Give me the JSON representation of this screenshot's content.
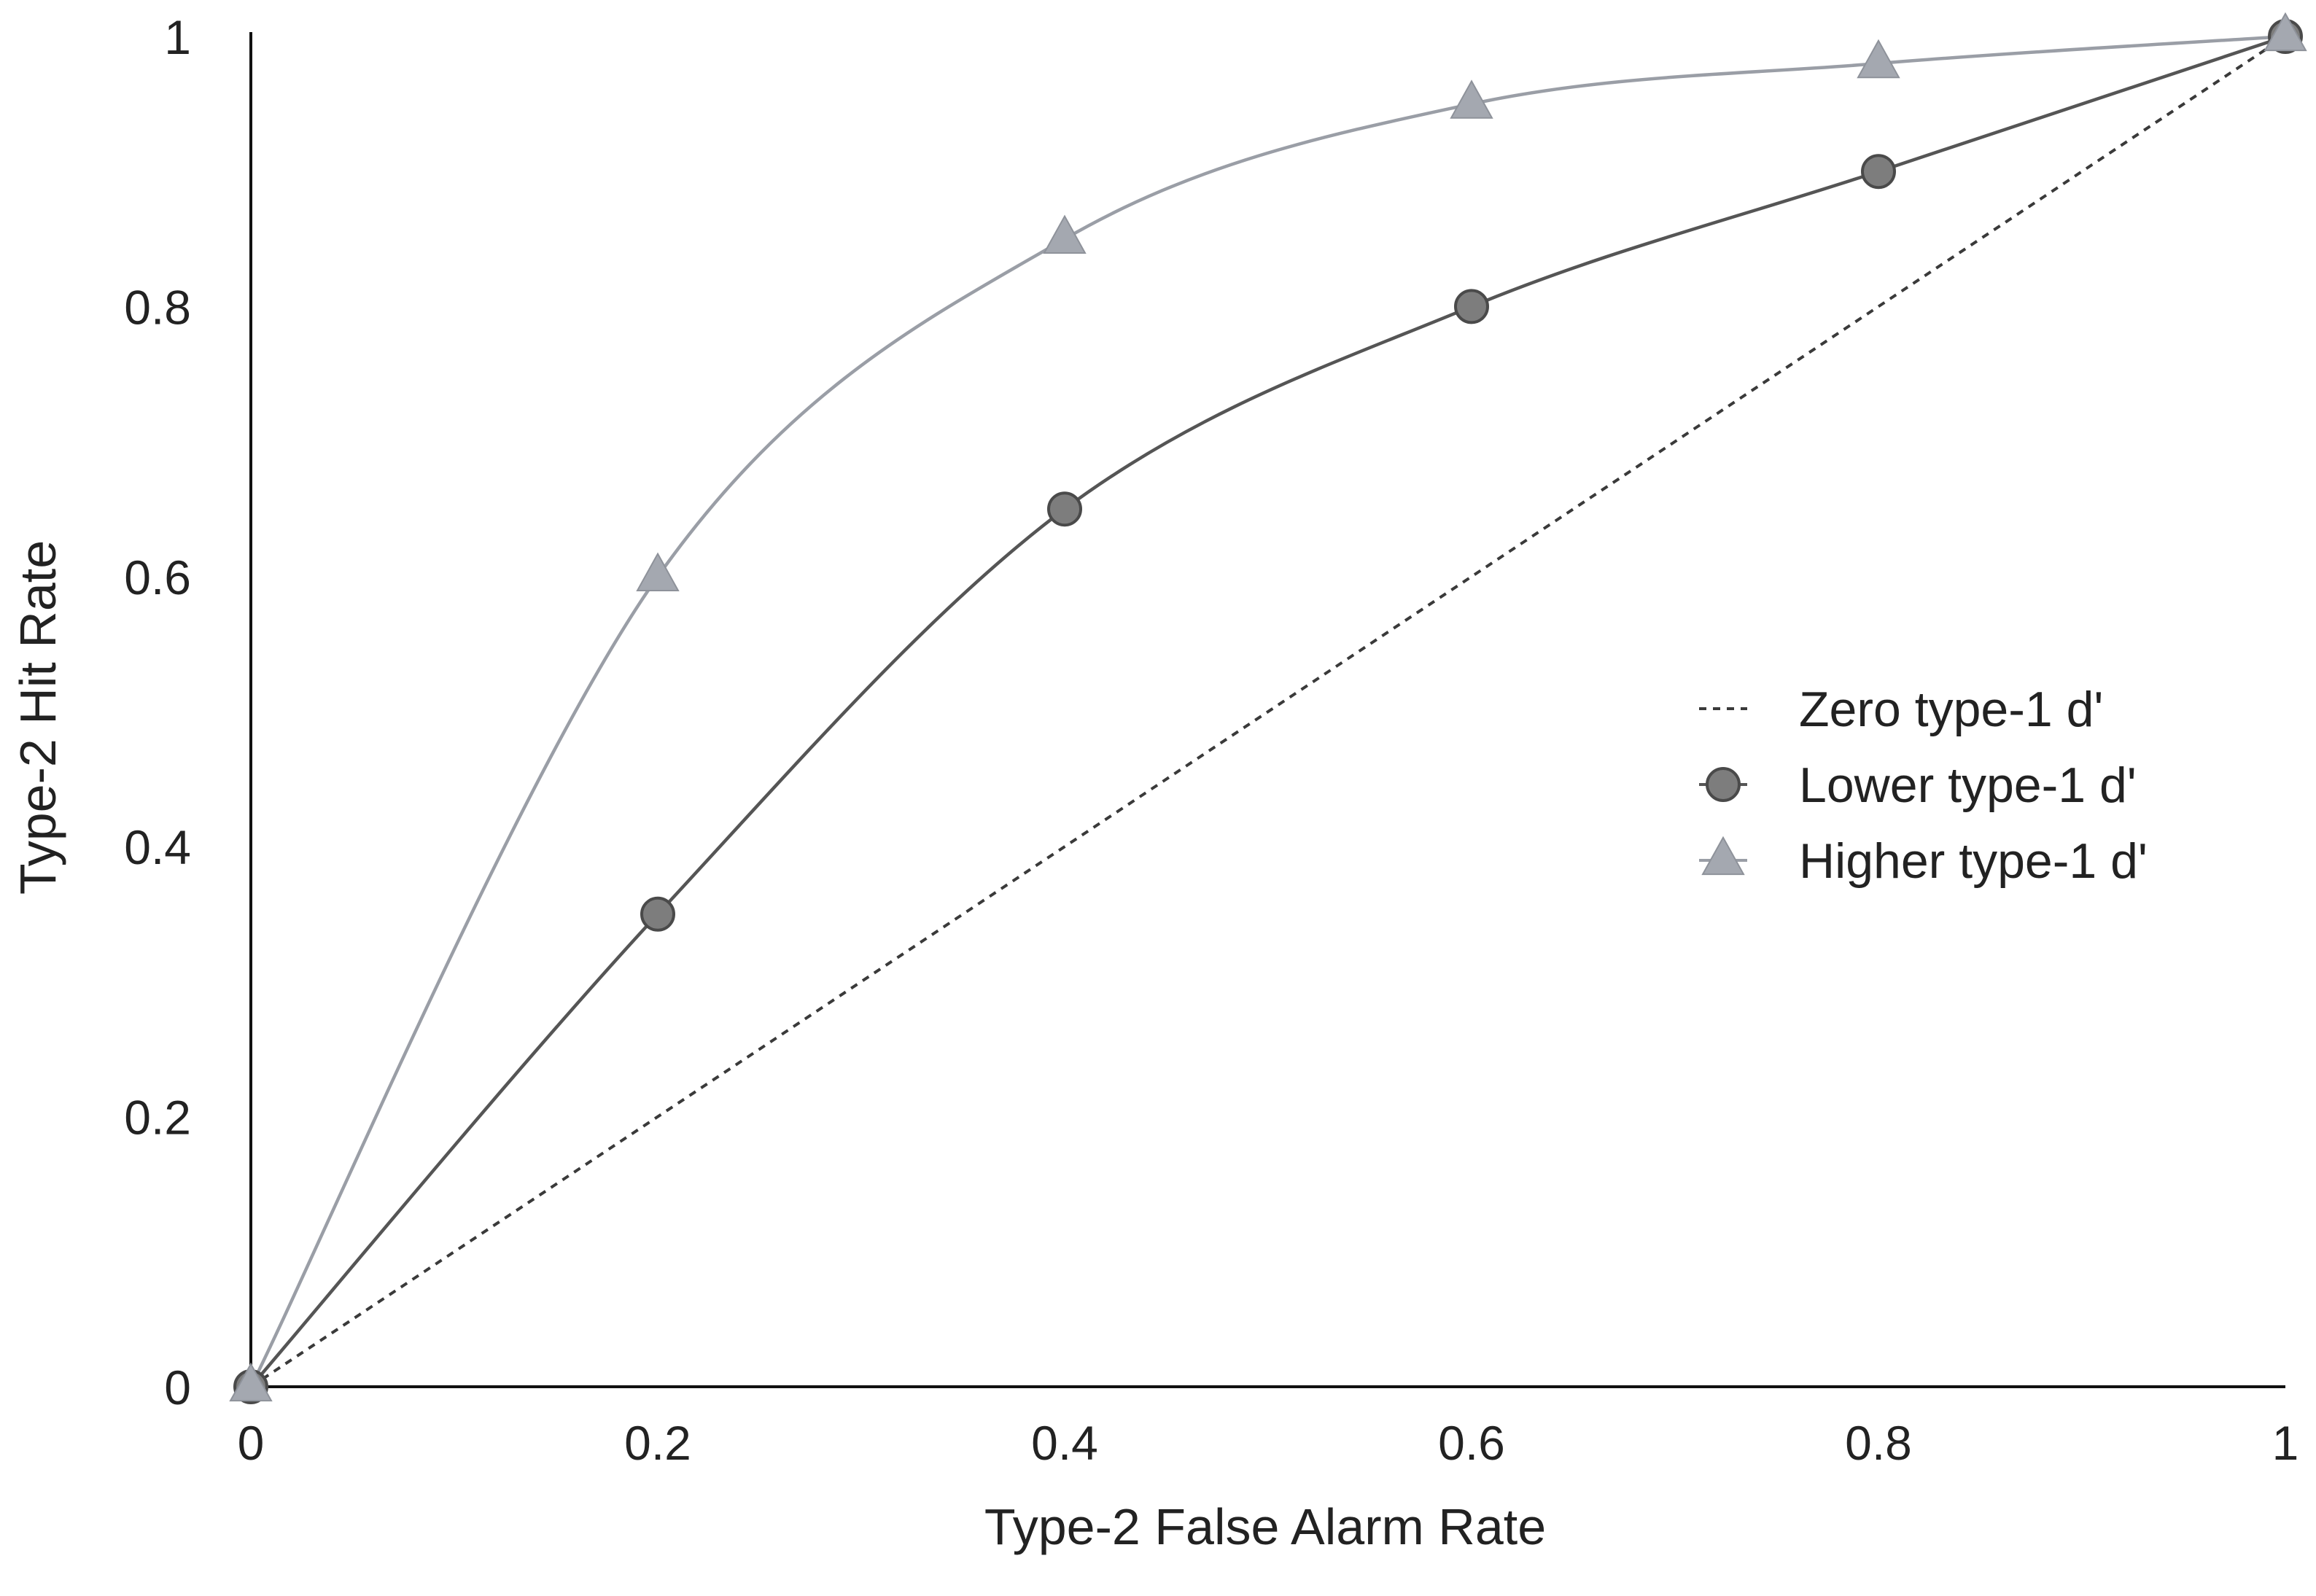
{
  "chart_data": {
    "type": "line",
    "title": "",
    "xlabel": "Type-2 False Alarm Rate",
    "ylabel": "Type-2 Hit Rate",
    "xlim": [
      0,
      1
    ],
    "ylim": [
      0,
      1
    ],
    "x_ticks": [
      0,
      0.2,
      0.4,
      0.6,
      0.8,
      1
    ],
    "y_ticks": [
      0,
      0.2,
      0.4,
      0.6,
      0.8,
      1
    ],
    "x_tick_labels": [
      "0",
      "0.2",
      "0.4",
      "0.6",
      "0.8",
      "1"
    ],
    "y_tick_labels": [
      "0",
      "0.2",
      "0.4",
      "0.6",
      "0.8",
      "1"
    ],
    "grid": false,
    "legend_position": "right",
    "series": [
      {
        "name": "Zero type-1 d'",
        "style": "dashed",
        "marker": "none",
        "color": "#3a3a3a",
        "x": [
          0,
          1
        ],
        "y": [
          0,
          1
        ]
      },
      {
        "name": "Lower type-1 d'",
        "style": "solid",
        "marker": "circle",
        "color": "#555555",
        "marker_color": "#7d7d7d",
        "x": [
          0,
          0.2,
          0.4,
          0.6,
          0.8,
          1
        ],
        "y": [
          0,
          0.35,
          0.65,
          0.8,
          0.9,
          1
        ]
      },
      {
        "name": "Higher type-1 d'",
        "style": "solid",
        "marker": "triangle",
        "color": "#9a9ea6",
        "marker_color": "#a4a8b0",
        "x": [
          0,
          0.2,
          0.4,
          0.6,
          0.8,
          1
        ],
        "y": [
          0,
          0.6,
          0.85,
          0.95,
          0.98,
          1
        ]
      }
    ]
  }
}
